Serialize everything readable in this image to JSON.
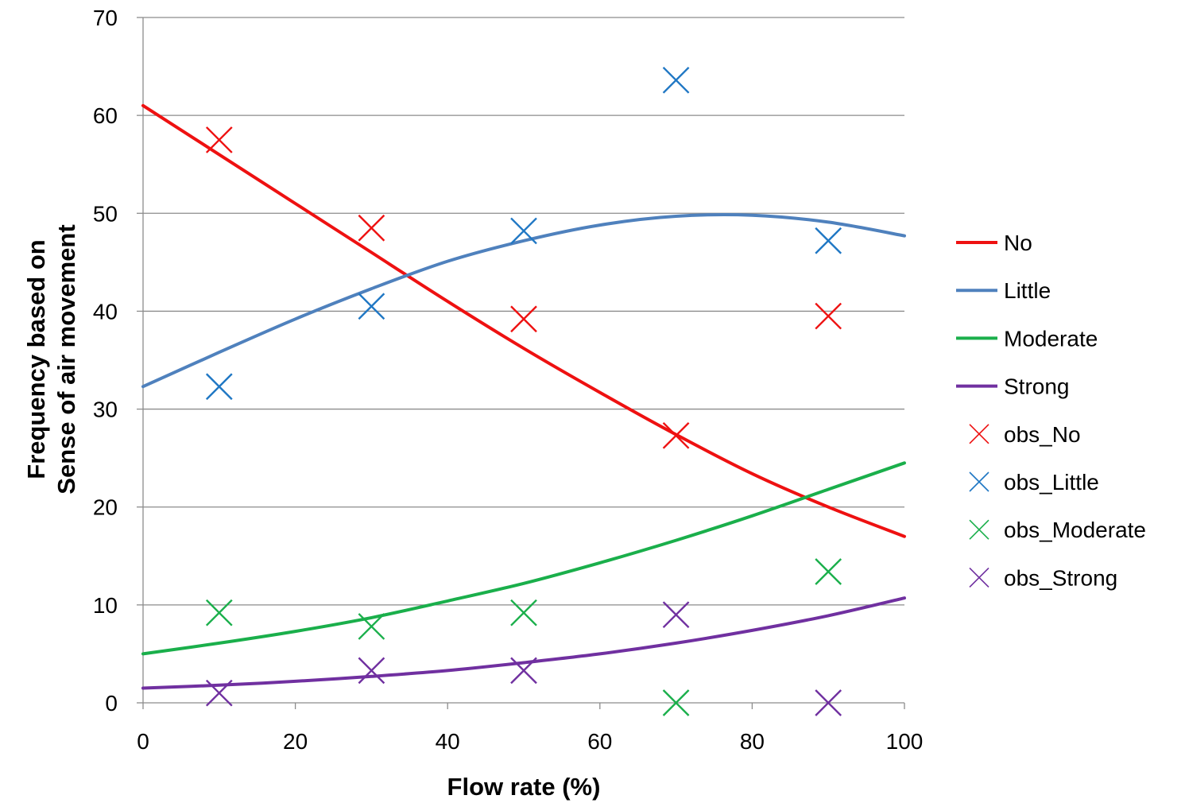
{
  "chart_data": {
    "type": "line",
    "xlabel": "Flow rate (%)",
    "ylabel_lines": [
      "Frequency based on",
      "Sense  of air movement"
    ],
    "xlim": [
      0,
      100
    ],
    "ylim": [
      0,
      70
    ],
    "x_ticks": [
      0,
      20,
      40,
      60,
      80,
      100
    ],
    "y_ticks": [
      0,
      10,
      20,
      30,
      40,
      50,
      60,
      70
    ],
    "grid": "horizontal",
    "legend_position": "right",
    "line_series": [
      {
        "name": "No",
        "color": "#ee1111",
        "x": [
          0,
          10,
          20,
          30,
          40,
          50,
          60,
          70,
          80,
          90,
          100
        ],
        "y": [
          61.0,
          56.0,
          51.0,
          46.0,
          41.0,
          36.2,
          31.7,
          27.4,
          23.4,
          20.0,
          17.0
        ]
      },
      {
        "name": "Little",
        "color": "#4f81bd",
        "x": [
          0,
          10,
          20,
          30,
          40,
          50,
          60,
          70,
          80,
          90,
          100
        ],
        "y": [
          32.3,
          35.8,
          39.2,
          42.3,
          45.1,
          47.2,
          48.8,
          49.7,
          49.8,
          49.1,
          47.7
        ]
      },
      {
        "name": "Moderate",
        "color": "#1aaf4b",
        "x": [
          0,
          10,
          20,
          30,
          40,
          50,
          60,
          70,
          80,
          90,
          100
        ],
        "y": [
          5.0,
          6.1,
          7.3,
          8.7,
          10.4,
          12.2,
          14.3,
          16.6,
          19.1,
          21.8,
          24.5
        ]
      },
      {
        "name": "Strong",
        "color": "#7030a0",
        "x": [
          0,
          10,
          20,
          30,
          40,
          50,
          60,
          70,
          80,
          90,
          100
        ],
        "y": [
          1.5,
          1.8,
          2.2,
          2.7,
          3.3,
          4.1,
          5.0,
          6.1,
          7.4,
          8.9,
          10.7
        ]
      }
    ],
    "scatter_series": [
      {
        "name": "obs_No",
        "color": "#ee1111",
        "x": [
          10,
          30,
          50,
          70,
          90
        ],
        "y": [
          57.5,
          48.5,
          39.2,
          27.3,
          39.5
        ]
      },
      {
        "name": "obs_Little",
        "color": "#1f77c4",
        "x": [
          10,
          30,
          50,
          70,
          90
        ],
        "y": [
          32.3,
          40.5,
          48.2,
          63.6,
          47.2
        ]
      },
      {
        "name": "obs_Moderate",
        "color": "#1aaf4b",
        "x": [
          10,
          30,
          50,
          70,
          90
        ],
        "y": [
          9.2,
          7.8,
          9.2,
          0.0,
          13.4
        ]
      },
      {
        "name": "obs_Strong",
        "color": "#7030a0",
        "x": [
          10,
          30,
          50,
          70,
          90
        ],
        "y": [
          1.0,
          3.3,
          3.3,
          9.0,
          0.0
        ]
      }
    ]
  }
}
